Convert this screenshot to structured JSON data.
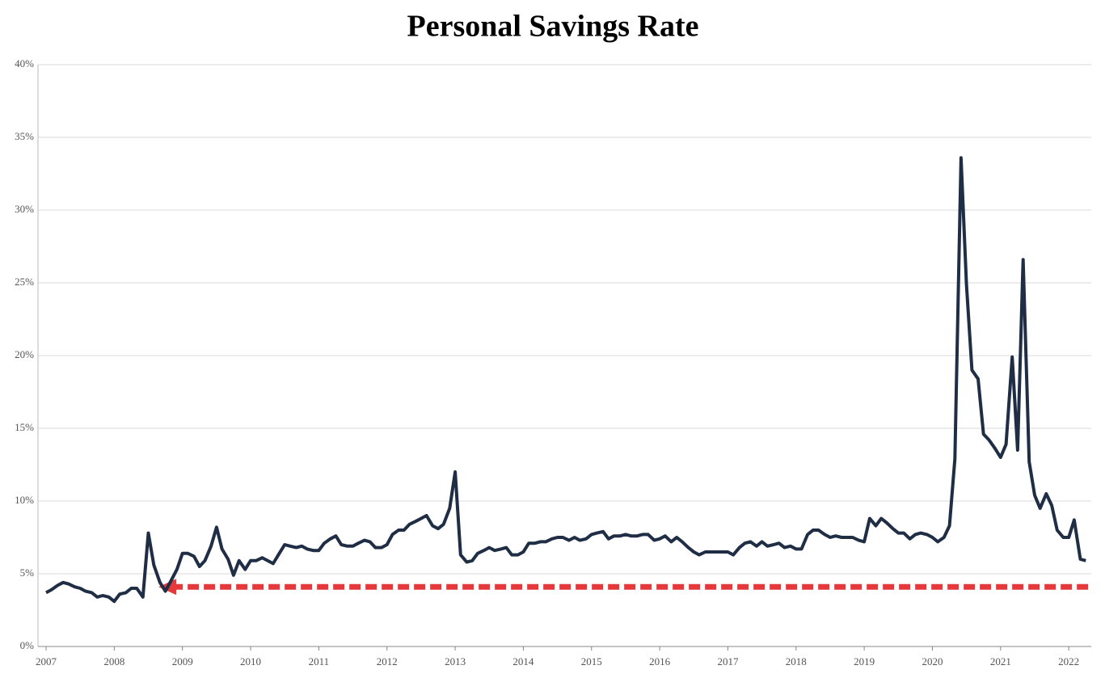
{
  "chart_data": {
    "type": "line",
    "title": "Personal Savings Rate",
    "color": "#1f2d45",
    "x": [
      2007,
      2007.08,
      2007.17,
      2007.25,
      2007.33,
      2007.42,
      2007.5,
      2007.58,
      2007.67,
      2007.75,
      2007.83,
      2007.92,
      2008,
      2008.08,
      2008.17,
      2008.25,
      2008.33,
      2008.42,
      2008.5,
      2008.58,
      2008.67,
      2008.75,
      2008.83,
      2008.92,
      2009,
      2009.08,
      2009.17,
      2009.25,
      2009.33,
      2009.42,
      2009.5,
      2009.58,
      2009.67,
      2009.75,
      2009.83,
      2009.92,
      2010,
      2010.08,
      2010.17,
      2010.25,
      2010.33,
      2010.42,
      2010.5,
      2010.58,
      2010.67,
      2010.75,
      2010.83,
      2010.92,
      2011,
      2011.08,
      2011.17,
      2011.25,
      2011.33,
      2011.42,
      2011.5,
      2011.58,
      2011.67,
      2011.75,
      2011.83,
      2011.92,
      2012,
      2012.08,
      2012.17,
      2012.25,
      2012.33,
      2012.42,
      2012.5,
      2012.58,
      2012.67,
      2012.75,
      2012.83,
      2012.92,
      2013,
      2013.08,
      2013.17,
      2013.25,
      2013.33,
      2013.42,
      2013.5,
      2013.58,
      2013.67,
      2013.75,
      2013.83,
      2013.92,
      2014,
      2014.08,
      2014.17,
      2014.25,
      2014.33,
      2014.42,
      2014.5,
      2014.58,
      2014.67,
      2014.75,
      2014.83,
      2014.92,
      2015,
      2015.08,
      2015.17,
      2015.25,
      2015.33,
      2015.42,
      2015.5,
      2015.58,
      2015.67,
      2015.75,
      2015.83,
      2015.92,
      2016,
      2016.08,
      2016.17,
      2016.25,
      2016.33,
      2016.42,
      2016.5,
      2016.58,
      2016.67,
      2016.75,
      2016.83,
      2016.92,
      2017,
      2017.08,
      2017.17,
      2017.25,
      2017.33,
      2017.42,
      2017.5,
      2017.58,
      2017.67,
      2017.75,
      2017.83,
      2017.92,
      2018,
      2018.08,
      2018.17,
      2018.25,
      2018.33,
      2018.42,
      2018.5,
      2018.58,
      2018.67,
      2018.75,
      2018.83,
      2018.92,
      2019,
      2019.08,
      2019.17,
      2019.25,
      2019.33,
      2019.42,
      2019.5,
      2019.58,
      2019.67,
      2019.75,
      2019.83,
      2019.92,
      2020,
      2020.08,
      2020.17,
      2020.25,
      2020.33,
      2020.42,
      2020.5,
      2020.58,
      2020.67,
      2020.75,
      2020.83,
      2020.92,
      2021,
      2021.08,
      2021.17,
      2021.25,
      2021.33,
      2021.42,
      2021.5,
      2021.58,
      2021.67,
      2021.75,
      2021.83,
      2021.92,
      2022,
      2022.08,
      2022.17,
      2022.25
    ],
    "values": [
      3.7,
      3.9,
      4.2,
      4.4,
      4.3,
      4.1,
      4.0,
      3.8,
      3.7,
      3.4,
      3.5,
      3.4,
      3.1,
      3.6,
      3.7,
      4.0,
      4.0,
      3.4,
      7.8,
      5.6,
      4.4,
      3.8,
      4.5,
      5.3,
      6.4,
      6.4,
      6.2,
      5.5,
      5.9,
      6.9,
      8.2,
      6.7,
      6.0,
      4.9,
      5.9,
      5.3,
      5.9,
      5.9,
      6.1,
      5.9,
      5.7,
      6.4,
      7.0,
      6.9,
      6.8,
      6.9,
      6.7,
      6.6,
      6.6,
      7.1,
      7.4,
      7.6,
      7.0,
      6.9,
      6.9,
      7.1,
      7.3,
      7.2,
      6.8,
      6.8,
      7.0,
      7.7,
      8.0,
      8.0,
      8.4,
      8.6,
      8.8,
      9.0,
      8.3,
      8.1,
      8.4,
      9.5,
      12.0,
      6.3,
      5.8,
      5.9,
      6.4,
      6.6,
      6.8,
      6.6,
      6.7,
      6.8,
      6.3,
      6.3,
      6.5,
      7.1,
      7.1,
      7.2,
      7.2,
      7.4,
      7.5,
      7.5,
      7.3,
      7.5,
      7.3,
      7.4,
      7.7,
      7.8,
      7.9,
      7.4,
      7.6,
      7.6,
      7.7,
      7.6,
      7.6,
      7.7,
      7.7,
      7.3,
      7.4,
      7.6,
      7.2,
      7.5,
      7.2,
      6.8,
      6.5,
      6.3,
      6.5,
      6.5,
      6.5,
      6.5,
      6.5,
      6.3,
      6.8,
      7.1,
      7.2,
      6.9,
      7.2,
      6.9,
      7.0,
      7.1,
      6.8,
      6.9,
      6.7,
      6.7,
      7.7,
      8.0,
      8.0,
      7.7,
      7.5,
      7.6,
      7.5,
      7.5,
      7.5,
      7.3,
      7.2,
      8.8,
      8.3,
      8.8,
      8.5,
      8.1,
      7.8,
      7.8,
      7.4,
      7.7,
      7.8,
      7.7,
      7.5,
      7.2,
      7.5,
      8.3,
      12.9,
      33.6,
      24.9,
      19.0,
      18.4,
      14.6,
      14.2,
      13.6,
      13.0,
      13.9,
      19.9,
      13.5,
      26.6,
      12.7,
      10.4,
      9.5,
      10.5,
      9.7,
      8.0,
      7.5,
      7.5,
      8.7,
      6.0,
      5.9
    ],
    "xlim": [
      2007,
      2022.33
    ],
    "xticks": [
      2007,
      2008,
      2009,
      2010,
      2011,
      2012,
      2013,
      2014,
      2015,
      2016,
      2017,
      2018,
      2019,
      2020,
      2021,
      2022
    ],
    "ylim": [
      0,
      40
    ],
    "yticks": [
      {
        "value": 0,
        "label": "0%"
      },
      {
        "value": 5,
        "label": "5%"
      },
      {
        "value": 10,
        "label": "10%"
      },
      {
        "value": 15,
        "label": "15%"
      },
      {
        "value": 20,
        "label": "20%"
      },
      {
        "value": 25,
        "label": "25%"
      },
      {
        "value": 30,
        "label": "30%"
      },
      {
        "value": 35,
        "label": "35%"
      },
      {
        "value": 40,
        "label": "40%"
      }
    ],
    "grid": true,
    "reference_line": {
      "value": 4.1,
      "color": "#e5383b",
      "xstart": 2008.65
    }
  }
}
